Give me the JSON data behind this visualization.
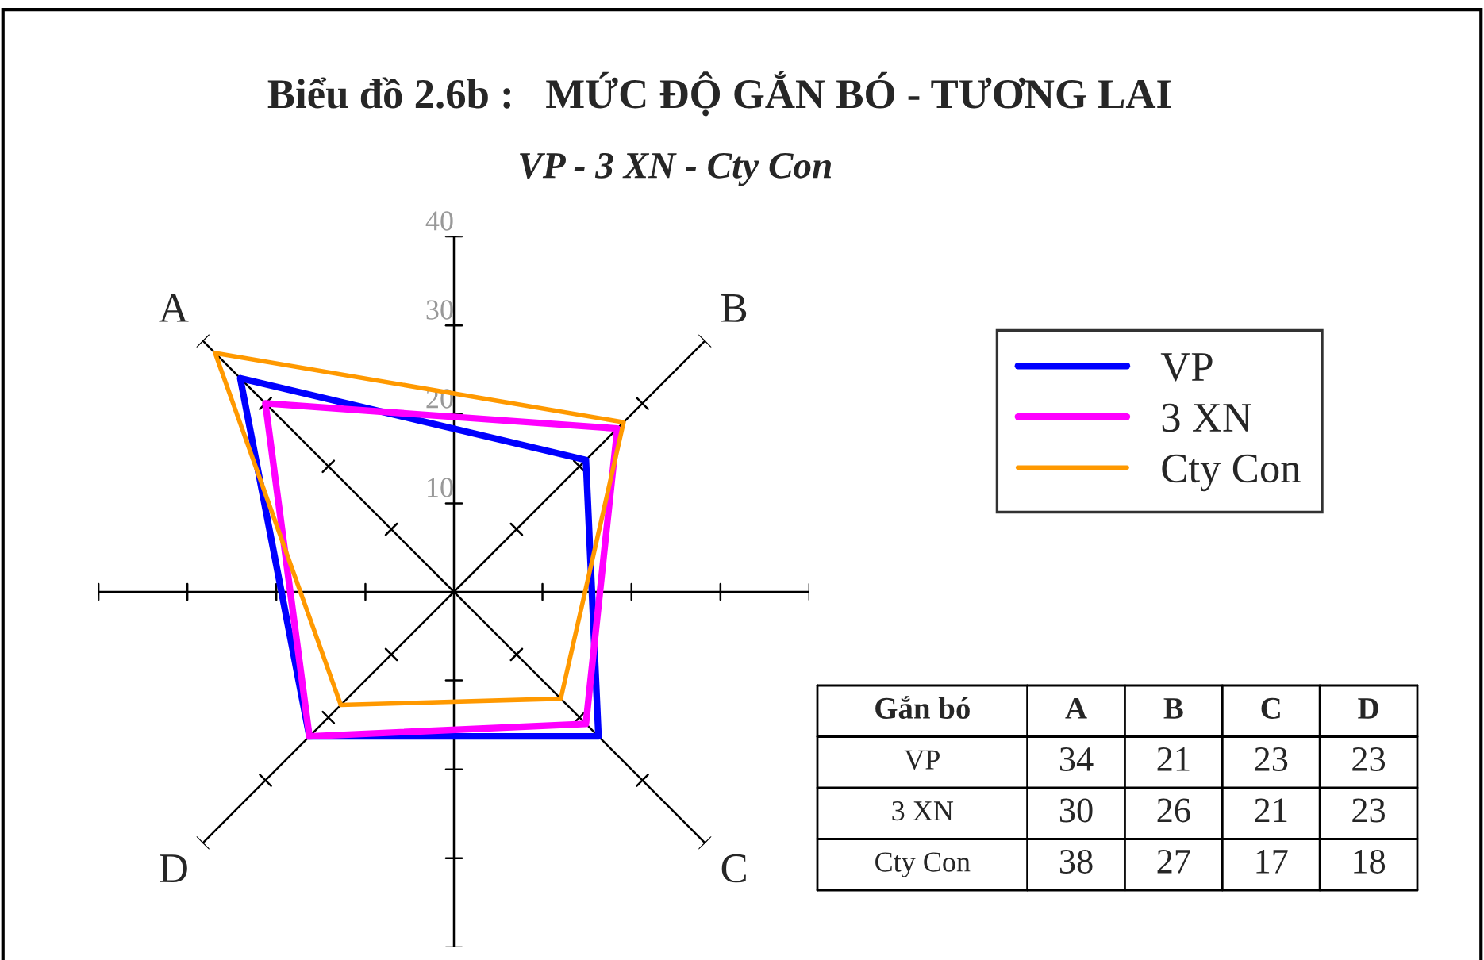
{
  "chart_data": [
    {
      "type": "radar",
      "title": "Biểu đồ 2.6b :   MỨC ĐỘ GẮN BÓ - TƯƠNG LAI",
      "subtitle": "VP - 3 XN - Cty Con",
      "categories": [
        "A",
        "B",
        "C",
        "D"
      ],
      "series": [
        {
          "name": "VP",
          "color": "#0000ff",
          "values": [
            34,
            21,
            23,
            23
          ]
        },
        {
          "name": "3 XN",
          "color": "#ff00ff",
          "values": [
            30,
            26,
            21,
            23
          ]
        },
        {
          "name": "Cty Con",
          "color": "#ff9900",
          "values": [
            38,
            27,
            17,
            18
          ]
        }
      ],
      "ylim": [
        0,
        40
      ],
      "yticks": [
        10,
        20,
        30,
        40
      ],
      "legend": "right"
    },
    {
      "type": "other",
      "legend_title": "Gắn bó",
      "categories": [
        "A",
        "B",
        "C",
        "D"
      ],
      "data_labels": true,
      "series": [
        {
          "name": "VP",
          "values": [
            34,
            21,
            23,
            23
          ]
        },
        {
          "name": "3 XN",
          "values": [
            30,
            26,
            21,
            23
          ]
        },
        {
          "name": "Cty Con",
          "values": [
            38,
            27,
            17,
            18
          ]
        }
      ]
    }
  ]
}
